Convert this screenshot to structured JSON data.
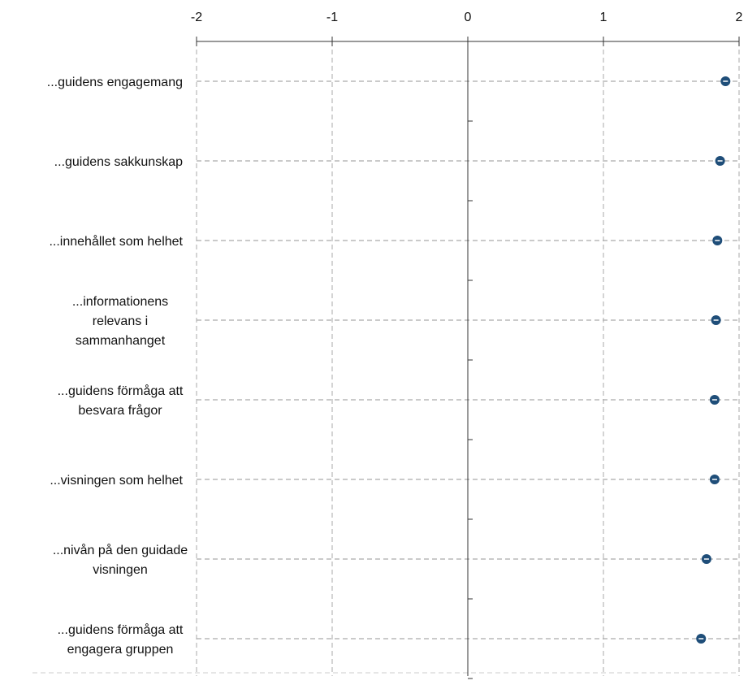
{
  "chart_data": {
    "type": "scatter",
    "title": "",
    "xlabel": "",
    "ylabel": "",
    "xlim": [
      -2,
      2
    ],
    "x_ticks": [
      -2,
      -1,
      0,
      1,
      2
    ],
    "x_tick_labels": [
      "-2",
      "-1",
      "0",
      "1",
      "2"
    ],
    "x_axis_position": "top",
    "grid": true,
    "legend": "none",
    "colors": {
      "marker": "#1f4e79",
      "gridline": "#aaaaaa",
      "axis": "#333333"
    },
    "categories": [
      [
        "...guidens engagemang"
      ],
      [
        "...guidens sakkunskap"
      ],
      [
        "...innehållet som helhet"
      ],
      [
        "...informationens",
        "relevans i",
        "sammanhanget"
      ],
      [
        "...guidens förmåga att",
        "besvara frågor"
      ],
      [
        "...visningen som helhet"
      ],
      [
        "...nivån på den guidade",
        "visningen"
      ],
      [
        "...guidens förmåga att",
        "engagera gruppen"
      ]
    ],
    "values": [
      1.9,
      1.86,
      1.84,
      1.83,
      1.82,
      1.82,
      1.76,
      1.72
    ]
  }
}
